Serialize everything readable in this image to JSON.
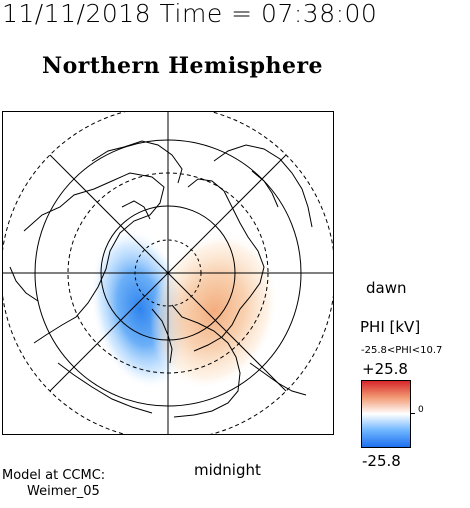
{
  "timestamp": "11/11/2018 Time = 07:38:00",
  "title": "Northern Hemisphere",
  "labels": {
    "dawn": "dawn",
    "midnight": "midnight"
  },
  "model": {
    "line1": "Model at CCMC:",
    "line2": "Weimer_05"
  },
  "colorbar": {
    "variable": "PHI [kV]",
    "range_text": "-25.8<PHI<10.7",
    "max_label": "+25.8",
    "min_label": "-25.8",
    "zero_label": "0",
    "colors": [
      "#d7262a",
      "#f29a74",
      "#ffffff",
      "#6fb6ff",
      "#1e6ff0"
    ]
  },
  "map": {
    "icon": "polar-plot-icon"
  }
}
